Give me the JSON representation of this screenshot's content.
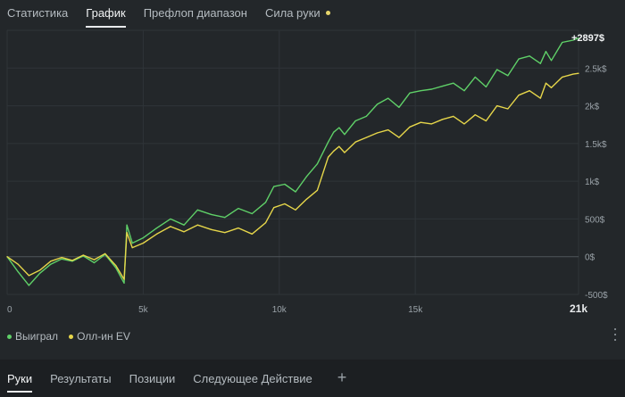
{
  "top_tabs": [
    {
      "label": "Статистика"
    },
    {
      "label": "График"
    },
    {
      "label": "Префлоп диапазон"
    },
    {
      "label": "Сила руки"
    }
  ],
  "chart_data": {
    "type": "line",
    "x_ticks": [
      "0",
      "5k",
      "10k",
      "15k",
      "21k"
    ],
    "x_tick_values": [
      0,
      5000,
      10000,
      15000,
      21000
    ],
    "y_ticks": [
      "2.5k$",
      "2k$",
      "1.5k$",
      "1k$",
      "500$",
      "0$",
      "-500$"
    ],
    "y_tick_values": [
      2500,
      2000,
      1500,
      1000,
      500,
      0,
      -500
    ],
    "xlim": [
      0,
      21000
    ],
    "ylim": [
      -500,
      3000
    ],
    "end_label": "+2897$",
    "grid": true,
    "legend_position": "bottom-left",
    "series": [
      {
        "name": "Выиграл",
        "color": "#5fd068",
        "x": [
          0,
          400,
          800,
          1200,
          1600,
          2000,
          2400,
          2800,
          3200,
          3600,
          4000,
          4300,
          4400,
          4600,
          5000,
          5500,
          6000,
          6500,
          7000,
          7500,
          8000,
          8500,
          9000,
          9500,
          9800,
          10200,
          10600,
          11000,
          11400,
          11800,
          12000,
          12200,
          12400,
          12800,
          13200,
          13600,
          14000,
          14400,
          14800,
          15200,
          15600,
          16000,
          16400,
          16800,
          17200,
          17600,
          18000,
          18400,
          18800,
          19200,
          19600,
          19800,
          20000,
          20400,
          20800,
          21000
        ],
        "y": [
          0,
          -200,
          -380,
          -220,
          -100,
          -30,
          -60,
          10,
          -80,
          30,
          -150,
          -350,
          420,
          180,
          250,
          380,
          500,
          420,
          620,
          560,
          520,
          640,
          570,
          720,
          930,
          960,
          860,
          1060,
          1230,
          1520,
          1650,
          1710,
          1620,
          1800,
          1860,
          2020,
          2100,
          1980,
          2170,
          2200,
          2220,
          2260,
          2300,
          2200,
          2380,
          2250,
          2480,
          2400,
          2620,
          2660,
          2560,
          2720,
          2600,
          2840,
          2870,
          2897
        ]
      },
      {
        "name": "Олл-ин EV",
        "color": "#e6d64a",
        "x": [
          0,
          400,
          800,
          1200,
          1600,
          2000,
          2400,
          2800,
          3200,
          3600,
          4000,
          4300,
          4400,
          4600,
          5000,
          5500,
          6000,
          6500,
          7000,
          7500,
          8000,
          8500,
          9000,
          9500,
          9800,
          10200,
          10600,
          11000,
          11400,
          11800,
          12000,
          12200,
          12400,
          12800,
          13200,
          13600,
          14000,
          14400,
          14800,
          15200,
          15600,
          16000,
          16400,
          16800,
          17200,
          17600,
          18000,
          18400,
          18800,
          19200,
          19600,
          19800,
          20000,
          20400,
          20800,
          21000
        ],
        "y": [
          0,
          -100,
          -250,
          -180,
          -60,
          -10,
          -50,
          20,
          -40,
          40,
          -120,
          -300,
          320,
          120,
          180,
          300,
          400,
          330,
          420,
          360,
          320,
          380,
          300,
          450,
          650,
          700,
          620,
          760,
          880,
          1320,
          1400,
          1460,
          1380,
          1520,
          1580,
          1640,
          1680,
          1580,
          1720,
          1780,
          1760,
          1820,
          1860,
          1760,
          1880,
          1800,
          2000,
          1960,
          2140,
          2200,
          2100,
          2300,
          2240,
          2380,
          2420,
          2430
        ]
      }
    ]
  },
  "legend": [
    {
      "label": "Выиграл",
      "color": "#5fd068"
    },
    {
      "label": "Олл-ин EV",
      "color": "#e6d64a"
    }
  ],
  "bottom_tabs": [
    {
      "label": "Руки"
    },
    {
      "label": "Результаты"
    },
    {
      "label": "Позиции"
    },
    {
      "label": "Следующее Действие"
    }
  ],
  "add_tab_symbol": "+"
}
